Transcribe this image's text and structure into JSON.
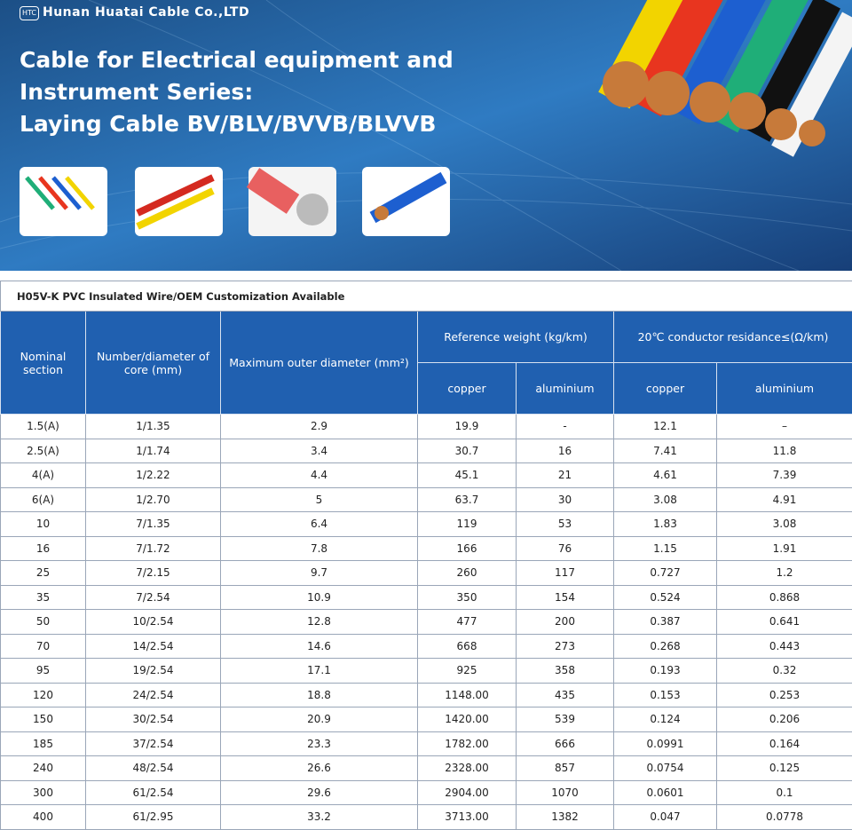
{
  "header": {
    "logo": "HTC",
    "company": "Hunan Huatai Cable Co.,LTD"
  },
  "banner": {
    "title": [
      "Cable for Electrical equipment and",
      "Instrument Series:",
      "Laying Cable BV/BLV/BVVB/BLVVB"
    ]
  },
  "table": {
    "caption": "H05V-K PVC Insulated Wire/OEM  Customization Available",
    "columns": {
      "nominal": "Nominal section",
      "core": "Number/diameter of core (mm)",
      "outer": "Maximum outer diameter (mm²)",
      "weight": "Reference weight (kg/km)",
      "resistance": "20℃ conductor residance≤(Ω/km)",
      "sub": [
        "copper",
        "aluminium",
        "copper",
        "aluminium"
      ]
    },
    "rows": [
      [
        "1.5(A)",
        "1/1.35",
        "2.9",
        "19.9",
        "-",
        "12.1",
        "–"
      ],
      [
        "2.5(A)",
        "1/1.74",
        "3.4",
        "30.7",
        "16",
        "7.41",
        "11.8"
      ],
      [
        "4(A)",
        "1/2.22",
        "4.4",
        "45.1",
        "21",
        "4.61",
        "7.39"
      ],
      [
        "6(A)",
        "1/2.70",
        "5",
        "63.7",
        "30",
        "3.08",
        "4.91"
      ],
      [
        "10",
        "7/1.35",
        "6.4",
        "119",
        "53",
        "1.83",
        "3.08"
      ],
      [
        "16",
        "7/1.72",
        "7.8",
        "166",
        "76",
        "1.15",
        "1.91"
      ],
      [
        "25",
        "7/2.15",
        "9.7",
        "260",
        "117",
        "0.727",
        "1.2"
      ],
      [
        "35",
        "7/2.54",
        "10.9",
        "350",
        "154",
        "0.524",
        "0.868"
      ],
      [
        "50",
        "10/2.54",
        "12.8",
        "477",
        "200",
        "0.387",
        "0.641"
      ],
      [
        "70",
        "14/2.54",
        "14.6",
        "668",
        "273",
        "0.268",
        "0.443"
      ],
      [
        "95",
        "19/2.54",
        "17.1",
        "925",
        "358",
        "0.193",
        "0.32"
      ],
      [
        "120",
        "24/2.54",
        "18.8",
        "1148.00",
        "435",
        "0.153",
        "0.253"
      ],
      [
        "150",
        "30/2.54",
        "20.9",
        "1420.00",
        "539",
        "0.124",
        "0.206"
      ],
      [
        "185",
        "37/2.54",
        "23.3",
        "1782.00",
        "666",
        "0.0991",
        "0.164"
      ],
      [
        "240",
        "48/2.54",
        "26.6",
        "2328.00",
        "857",
        "0.0754",
        "0.125"
      ],
      [
        "300",
        "61/2.54",
        "29.6",
        "2904.00",
        "1070",
        "0.0601",
        "0.1"
      ],
      [
        "400",
        "61/2.95",
        "33.2",
        "3713.00",
        "1382",
        "0.047",
        "0.0778"
      ]
    ]
  }
}
